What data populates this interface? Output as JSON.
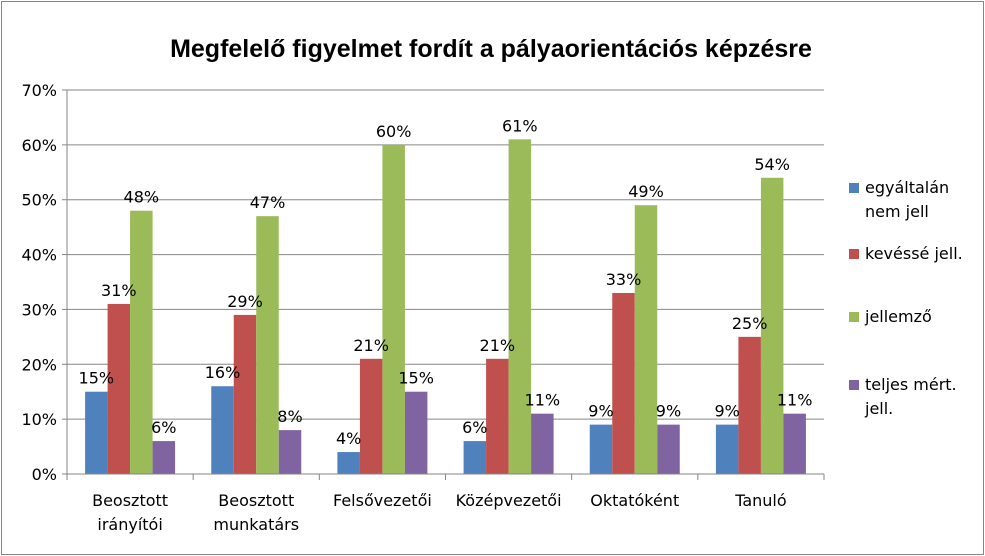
{
  "chart_data": {
    "type": "bar",
    "title": "Megfelelő figyelmet fordít a pályaorientációs képzésre",
    "categories": [
      [
        "Beosztott",
        "irányítói"
      ],
      [
        "Beosztott",
        "munkatárs"
      ],
      [
        "Felsővezetői"
      ],
      [
        "Középvezetői"
      ],
      [
        "Oktatóként"
      ],
      [
        "Tanuló"
      ]
    ],
    "ylim": [
      0,
      70
    ],
    "yticks": [
      "0%",
      "10%",
      "20%",
      "30%",
      "40%",
      "50%",
      "60%",
      "70%"
    ],
    "grid": true,
    "legend_position": "right",
    "series": [
      {
        "name": [
          "egyáltalán",
          "nem jell"
        ],
        "color": "#4F81BD",
        "values": [
          15,
          16,
          4,
          6,
          9,
          9
        ],
        "labels": [
          "15%",
          "16%",
          "4%",
          "6%",
          "9%",
          "9%"
        ]
      },
      {
        "name": [
          "kevéssé jell."
        ],
        "color": "#C0504D",
        "values": [
          31,
          29,
          21,
          21,
          33,
          25
        ],
        "labels": [
          "31%",
          "29%",
          "21%",
          "21%",
          "33%",
          "25%"
        ]
      },
      {
        "name": [
          " jellemző"
        ],
        "color": "#9BBB59",
        "values": [
          48,
          47,
          60,
          61,
          49,
          54
        ],
        "labels": [
          "48%",
          "47%",
          "60%",
          "61%",
          "49%",
          "54%"
        ]
      },
      {
        "name": [
          "teljes mért.",
          "jell."
        ],
        "color": "#8064A2",
        "values": [
          6,
          8,
          15,
          11,
          9,
          11
        ],
        "labels": [
          "6%",
          "8%",
          "15%",
          "11%",
          "9%",
          "11%"
        ]
      }
    ]
  }
}
